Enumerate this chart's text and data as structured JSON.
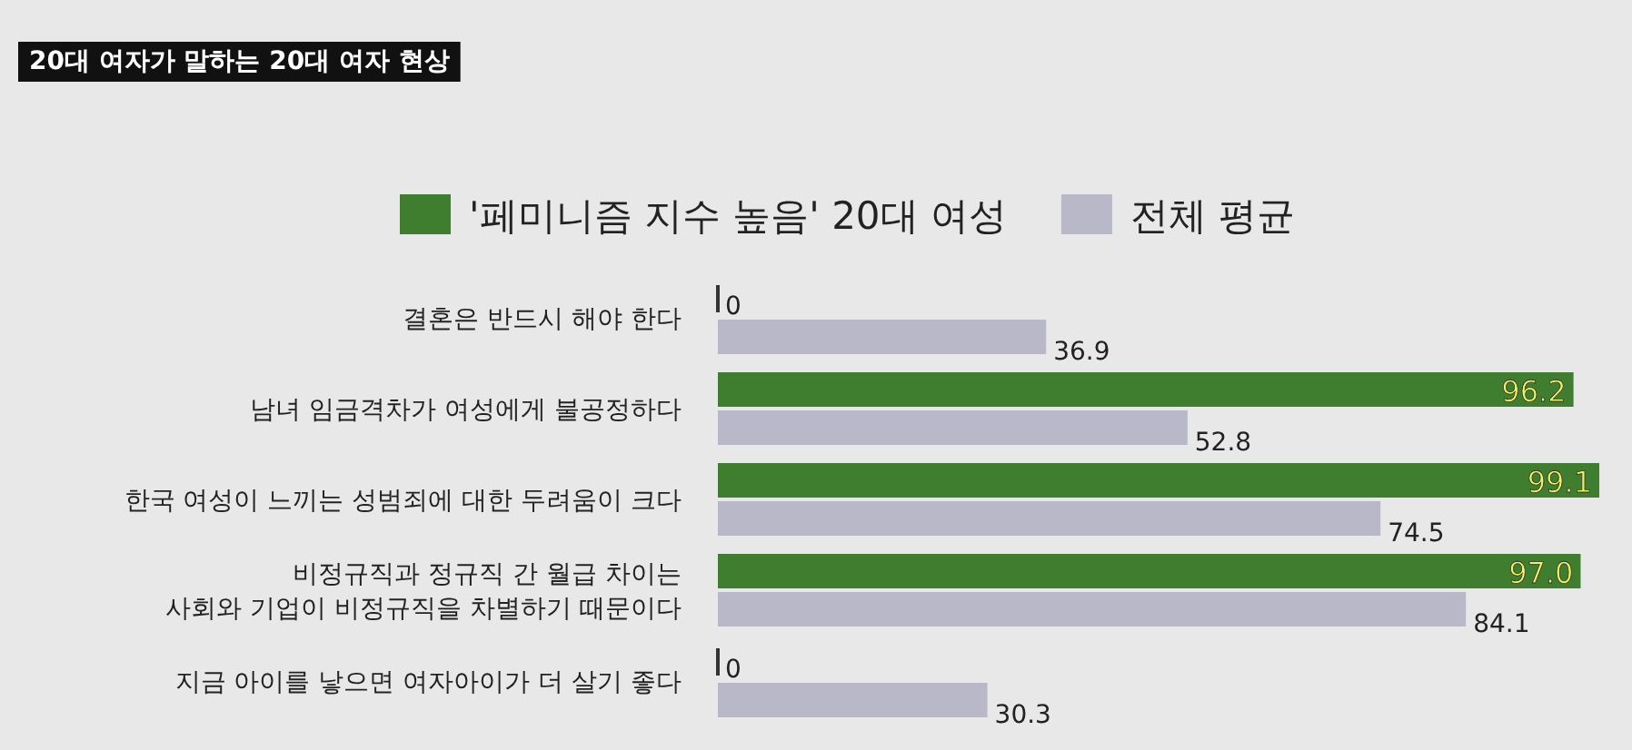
{
  "chart_data": {
    "type": "bar",
    "orientation": "horizontal",
    "title": "20대 여자가 말하는 20대 여자 현상",
    "categories": [
      "결혼은 반드시 해야 한다",
      "남녀 임금격차가 여성에게 불공정하다",
      "한국 여성이 느끼는 성범죄에 대한 두려움이 크다",
      "비정규직과 정규직 간 월급 차이는\n사회와 기업이 비정규직을 차별하기 때문이다",
      "지금 아이를 낳으면 여자아이가 더 살기 좋다"
    ],
    "series": [
      {
        "name": "'페미니즘 지수 높음' 20대 여성",
        "color": "#3f7d2f",
        "values": [
          0,
          96.2,
          99.1,
          97.0,
          0
        ],
        "value_labels": [
          "0",
          "96.2",
          "99.1",
          "97.0",
          "0"
        ]
      },
      {
        "name": "전체 평균",
        "color": "#b8b8c8",
        "values": [
          36.9,
          52.8,
          74.5,
          84.1,
          30.3
        ],
        "value_labels": [
          "36.9",
          "52.8",
          "74.5",
          "84.1",
          "30.3"
        ]
      }
    ],
    "legend": "top"
  }
}
